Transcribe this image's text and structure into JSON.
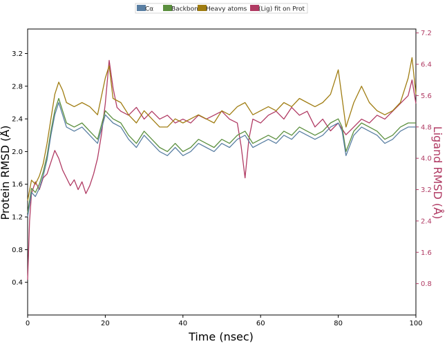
{
  "chart_data": {
    "type": "line",
    "xlabel": "Time (nsec)",
    "ylabel_left": "Protein RMSD (Å)",
    "ylabel_right": "Ligand RMSD (Å)",
    "xlim": [
      0,
      100
    ],
    "ylim_left": [
      0.0,
      3.5
    ],
    "ylim_right": [
      0.0,
      7.3
    ],
    "xticks": [
      0,
      20,
      40,
      60,
      80,
      100
    ],
    "yticks_left": [
      0.4,
      0.8,
      1.2,
      1.6,
      2.0,
      2.4,
      2.8,
      3.2
    ],
    "yticks_right": [
      0.8,
      1.6,
      2.4,
      3.2,
      4.0,
      4.8,
      5.6,
      6.4,
      7.2
    ],
    "legend_placement": "top-center",
    "grid": false,
    "series": [
      {
        "name": "Cα",
        "axis": "left",
        "color": "#5a7fa3",
        "x": [
          0,
          1,
          2,
          3,
          4,
          5,
          6,
          7,
          8,
          9,
          10,
          12,
          14,
          16,
          18,
          20,
          22,
          24,
          26,
          28,
          30,
          32,
          34,
          36,
          38,
          40,
          42,
          44,
          46,
          48,
          50,
          52,
          54,
          56,
          58,
          60,
          62,
          64,
          66,
          68,
          70,
          72,
          74,
          76,
          78,
          80,
          81,
          82,
          84,
          86,
          88,
          90,
          92,
          94,
          96,
          98,
          100
        ],
        "y": [
          1.2,
          1.5,
          1.45,
          1.55,
          1.7,
          1.9,
          2.2,
          2.45,
          2.6,
          2.45,
          2.3,
          2.25,
          2.3,
          2.2,
          2.1,
          2.45,
          2.35,
          2.3,
          2.15,
          2.05,
          2.2,
          2.1,
          2.0,
          1.95,
          2.05,
          1.95,
          2.0,
          2.1,
          2.05,
          2.0,
          2.1,
          2.05,
          2.15,
          2.2,
          2.05,
          2.1,
          2.15,
          2.1,
          2.2,
          2.15,
          2.25,
          2.2,
          2.15,
          2.2,
          2.3,
          2.35,
          2.25,
          1.95,
          2.2,
          2.3,
          2.25,
          2.2,
          2.1,
          2.15,
          2.25,
          2.3,
          2.3
        ]
      },
      {
        "name": "Backbone",
        "axis": "left",
        "color": "#5b8f3e",
        "x": [
          0,
          1,
          2,
          3,
          4,
          5,
          6,
          7,
          8,
          9,
          10,
          12,
          14,
          16,
          18,
          20,
          22,
          24,
          26,
          28,
          30,
          32,
          34,
          36,
          38,
          40,
          42,
          44,
          46,
          48,
          50,
          52,
          54,
          56,
          58,
          60,
          62,
          64,
          66,
          68,
          70,
          72,
          74,
          76,
          78,
          80,
          81,
          82,
          84,
          86,
          88,
          90,
          92,
          94,
          96,
          98,
          100
        ],
        "y": [
          1.25,
          1.55,
          1.5,
          1.6,
          1.75,
          1.95,
          2.25,
          2.5,
          2.65,
          2.5,
          2.35,
          2.3,
          2.35,
          2.25,
          2.15,
          2.5,
          2.4,
          2.35,
          2.2,
          2.1,
          2.25,
          2.15,
          2.05,
          2.0,
          2.1,
          2.0,
          2.05,
          2.15,
          2.1,
          2.05,
          2.15,
          2.1,
          2.2,
          2.25,
          2.1,
          2.15,
          2.2,
          2.15,
          2.25,
          2.2,
          2.3,
          2.25,
          2.2,
          2.25,
          2.35,
          2.4,
          2.3,
          2.0,
          2.25,
          2.35,
          2.3,
          2.25,
          2.15,
          2.2,
          2.3,
          2.35,
          2.35
        ]
      },
      {
        "name": "Heavy atoms",
        "axis": "left",
        "color": "#a07d12",
        "x": [
          0,
          1,
          2,
          3,
          4,
          5,
          6,
          7,
          8,
          9,
          10,
          12,
          14,
          16,
          18,
          20,
          21,
          22,
          24,
          26,
          28,
          30,
          32,
          34,
          36,
          38,
          40,
          42,
          44,
          46,
          48,
          50,
          52,
          54,
          56,
          58,
          60,
          62,
          64,
          66,
          68,
          70,
          72,
          74,
          76,
          78,
          80,
          81,
          82,
          84,
          86,
          88,
          90,
          92,
          94,
          96,
          98,
          99,
          100
        ],
        "y": [
          1.4,
          1.65,
          1.6,
          1.7,
          1.85,
          2.1,
          2.4,
          2.7,
          2.85,
          2.75,
          2.6,
          2.55,
          2.6,
          2.55,
          2.45,
          2.9,
          3.05,
          2.65,
          2.6,
          2.45,
          2.35,
          2.5,
          2.4,
          2.3,
          2.3,
          2.4,
          2.35,
          2.4,
          2.45,
          2.4,
          2.35,
          2.5,
          2.45,
          2.55,
          2.6,
          2.45,
          2.5,
          2.55,
          2.5,
          2.6,
          2.55,
          2.65,
          2.6,
          2.55,
          2.6,
          2.7,
          3.0,
          2.65,
          2.3,
          2.6,
          2.8,
          2.6,
          2.5,
          2.45,
          2.5,
          2.6,
          2.9,
          3.15,
          2.7
        ]
      },
      {
        "name": "(Lig) fit on Prot",
        "axis": "right",
        "color": "#b03a63",
        "x": [
          0,
          0.5,
          1,
          2,
          3,
          4,
          5,
          6,
          7,
          8,
          9,
          10,
          11,
          12,
          13,
          14,
          15,
          16,
          17,
          18,
          19,
          20,
          21,
          22,
          23,
          24,
          26,
          28,
          30,
          32,
          34,
          36,
          38,
          40,
          42,
          44,
          46,
          48,
          50,
          52,
          54,
          55,
          56,
          57,
          58,
          60,
          62,
          64,
          66,
          68,
          70,
          72,
          74,
          76,
          78,
          80,
          82,
          84,
          86,
          88,
          90,
          92,
          94,
          96,
          98,
          99,
          100
        ],
        "y": [
          0.9,
          2.4,
          3.1,
          3.4,
          3.2,
          3.5,
          3.6,
          3.9,
          4.2,
          4.0,
          3.7,
          3.5,
          3.3,
          3.45,
          3.2,
          3.4,
          3.1,
          3.3,
          3.6,
          4.0,
          4.6,
          5.4,
          6.5,
          5.8,
          5.3,
          5.2,
          5.1,
          5.3,
          5.0,
          5.2,
          5.0,
          5.1,
          4.9,
          5.0,
          4.9,
          5.1,
          5.0,
          5.1,
          5.2,
          5.0,
          4.9,
          4.3,
          3.5,
          4.5,
          5.0,
          4.9,
          5.1,
          5.2,
          5.0,
          5.3,
          5.1,
          5.2,
          4.8,
          5.0,
          4.7,
          4.9,
          4.6,
          4.8,
          5.0,
          4.9,
          5.1,
          5.0,
          5.2,
          5.4,
          5.6,
          6.0,
          5.4
        ]
      }
    ]
  }
}
